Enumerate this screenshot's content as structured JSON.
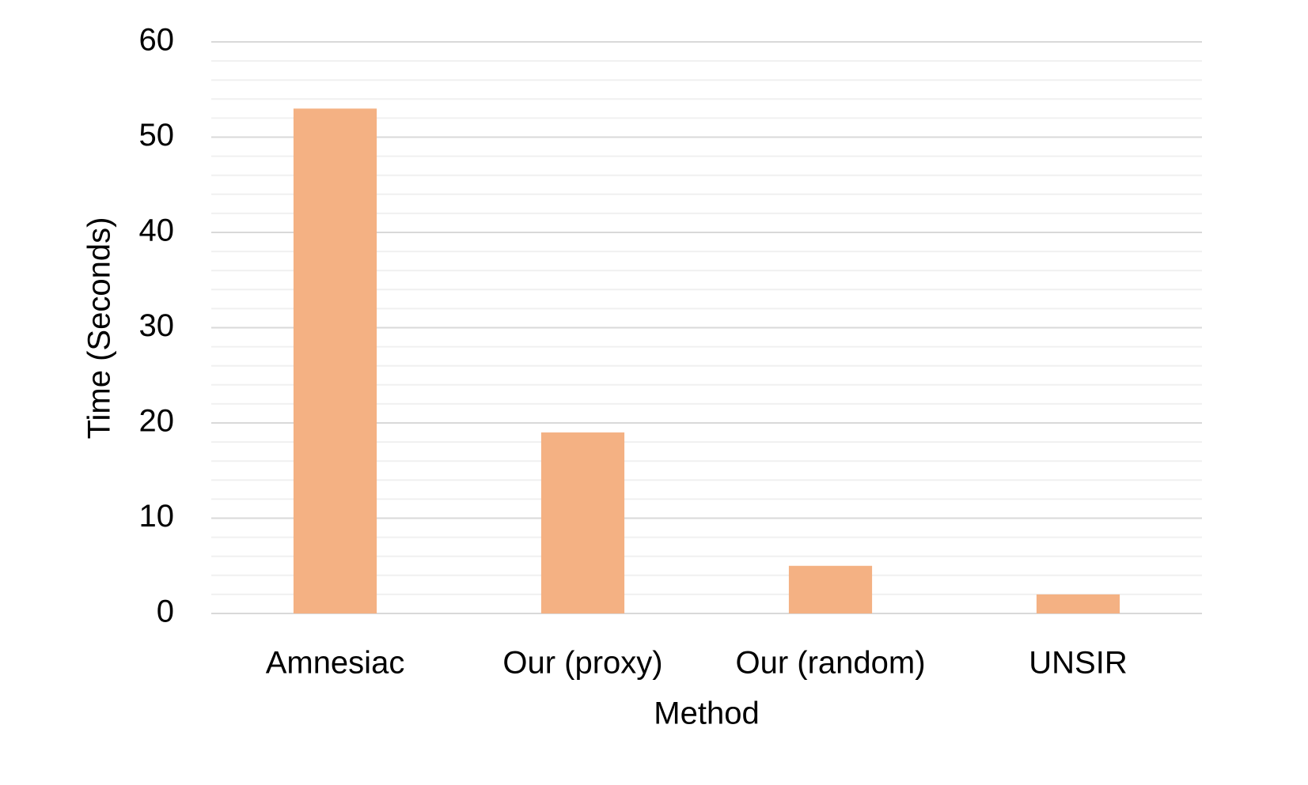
{
  "chart_data": {
    "type": "bar",
    "x_label": "Method",
    "y_label": "Time (Seconds)",
    "categories": [
      "Amnesiac",
      "Our (proxy)",
      "Our (random)",
      "UNSIR"
    ],
    "values": [
      53,
      19,
      5,
      2
    ],
    "color": "#f4b183",
    "ylim": [
      0,
      60
    ],
    "yticks": [
      0,
      10,
      20,
      30,
      40,
      50,
      60
    ],
    "minor_yticks": [
      2,
      4,
      6,
      8,
      12,
      14,
      16,
      18,
      22,
      24,
      26,
      28,
      32,
      34,
      36,
      38,
      42,
      44,
      46,
      48,
      52,
      54,
      56,
      58
    ],
    "grid": true
  }
}
